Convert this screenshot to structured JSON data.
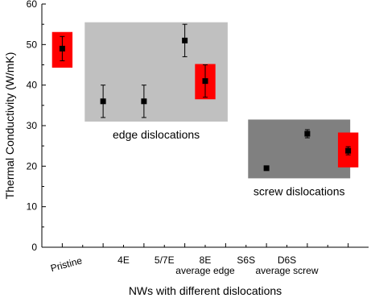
{
  "chart_data": {
    "type": "scatter",
    "title": "",
    "xlabel": "NWs with different dislocations",
    "ylabel": "Thermal Conductivity (W/mK)",
    "ylim": [
      0,
      60
    ],
    "yticks": [
      0,
      10,
      20,
      30,
      40,
      50,
      60
    ],
    "xlim": [
      0,
      8
    ],
    "grid": false,
    "categories": [
      {
        "x": 1,
        "lines": [
          "Pristine"
        ],
        "rotated": true
      },
      {
        "x": 2,
        "lines": [
          "4E"
        ],
        "rotated": false
      },
      {
        "x": 3,
        "lines": [
          "5/7E"
        ],
        "rotated": false
      },
      {
        "x": 4,
        "lines": [
          "8E",
          "average edge"
        ],
        "rotated": false
      },
      {
        "x": 5,
        "lines": [
          "S6S"
        ],
        "rotated": false
      },
      {
        "x": 6,
        "lines": [
          "D6S",
          "average screw"
        ],
        "rotated": false
      }
    ],
    "points": [
      {
        "x": 0.5,
        "y": 49.0,
        "err": 3.0
      },
      {
        "x": 1.5,
        "y": 36.0,
        "err": 4.0
      },
      {
        "x": 2.5,
        "y": 36.0,
        "err": 4.0
      },
      {
        "x": 3.5,
        "y": 51.0,
        "err": 4.0
      },
      {
        "x": 4.0,
        "y": 41.0,
        "err": 4.0
      },
      {
        "x": 5.5,
        "y": 19.5,
        "err": 0.5
      },
      {
        "x": 6.5,
        "y": 28.0,
        "err": 1.0
      },
      {
        "x": 7.5,
        "y": 23.8,
        "err": 1.0
      }
    ],
    "regions": [
      {
        "label": "edge dislocations",
        "x0": 1.05,
        "x1": 4.55,
        "y0": 31.0,
        "y1": 55.5,
        "color": "#c0c0c0"
      },
      {
        "label": "screw dislocations",
        "x0": 5.05,
        "x1": 7.55,
        "y0": 17.0,
        "y1": 31.5,
        "color": "#808080"
      }
    ],
    "highlights": [
      {
        "x0": 0.25,
        "x1": 0.75,
        "y0": 44.3,
        "y1": 53.1,
        "color": "#ff0000"
      },
      {
        "x0": 3.75,
        "x1": 4.25,
        "y0": 36.5,
        "y1": 45.2,
        "color": "#ff0000"
      },
      {
        "x0": 7.25,
        "x1": 7.75,
        "y0": 19.7,
        "y1": 28.3,
        "color": "#ff0000"
      }
    ],
    "colors": {
      "axis": "#000000",
      "marker": "#000000",
      "background": "#ffffff"
    }
  }
}
